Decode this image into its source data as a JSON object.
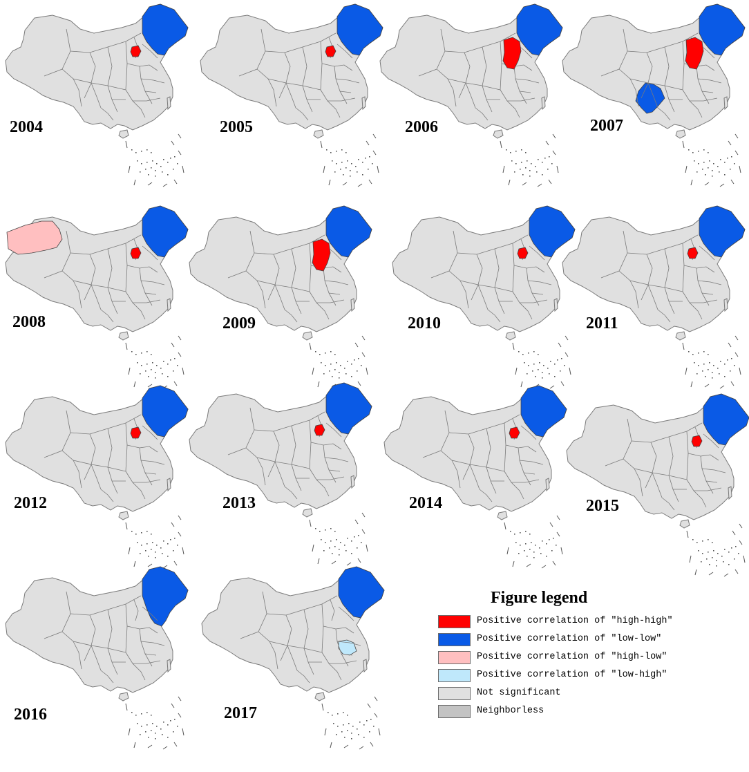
{
  "colors": {
    "high_high": "#ff0000",
    "low_low": "#0a5ae6",
    "high_low": "#ffbfc0",
    "low_high": "#bfe8fb",
    "not_significant": "#e0e0e0",
    "neighborless": "#c3c3c3",
    "boundary": "#7a7a7a"
  },
  "maps": [
    {
      "year": "2004",
      "high_high": "small",
      "low_low": [
        "northeast"
      ],
      "high_low": [],
      "low_high": []
    },
    {
      "year": "2005",
      "high_high": "small",
      "low_low": [
        "northeast"
      ],
      "high_low": [],
      "low_high": []
    },
    {
      "year": "2006",
      "high_high": "large",
      "low_low": [
        "northeast"
      ],
      "high_low": [],
      "low_high": []
    },
    {
      "year": "2007",
      "high_high": "large",
      "low_low": [
        "northeast",
        "southwest"
      ],
      "high_low": [],
      "low_high": []
    },
    {
      "year": "2008",
      "high_high": "small",
      "low_low": [
        "northeast"
      ],
      "high_low": [
        "northwest"
      ],
      "low_high": []
    },
    {
      "year": "2009",
      "high_high": "large",
      "low_low": [
        "northeast"
      ],
      "high_low": [],
      "low_high": []
    },
    {
      "year": "2010",
      "high_high": "small",
      "low_low": [
        "northeast"
      ],
      "high_low": [],
      "low_high": []
    },
    {
      "year": "2011",
      "high_high": "small",
      "low_low": [
        "northeast"
      ],
      "high_low": [],
      "low_high": []
    },
    {
      "year": "2012",
      "high_high": "small",
      "low_low": [
        "northeast"
      ],
      "high_low": [],
      "low_high": []
    },
    {
      "year": "2013",
      "high_high": "small",
      "low_low": [
        "northeast"
      ],
      "high_low": [],
      "low_high": []
    },
    {
      "year": "2014",
      "high_high": "small",
      "low_low": [
        "northeast"
      ],
      "high_low": [],
      "low_high": []
    },
    {
      "year": "2015",
      "high_high": "small",
      "low_low": [
        "northeast"
      ],
      "high_low": [],
      "low_high": []
    },
    {
      "year": "2016",
      "high_high": "none",
      "low_low": [
        "northeast-wide"
      ],
      "high_low": [],
      "low_high": []
    },
    {
      "year": "2017",
      "high_high": "none",
      "low_low": [
        "northeast"
      ],
      "high_low": [],
      "low_high": [
        "east-coast"
      ]
    }
  ],
  "legend": {
    "title": "Figure legend",
    "items": [
      {
        "label": "Positive correlation of \"high-high\"",
        "color": "#ff0000"
      },
      {
        "label": "Positive correlation of \"low-low\"",
        "color": "#0a5ae6"
      },
      {
        "label": "Positive correlation of \"high-low\"",
        "color": "#ffbfc0"
      },
      {
        "label": "Positive correlation of \"low-high\"",
        "color": "#bfe8fb"
      },
      {
        "label": "Not significant",
        "color": "#e0e0e0"
      },
      {
        "label": "Neighborless",
        "color": "#c3c3c3"
      }
    ]
  }
}
